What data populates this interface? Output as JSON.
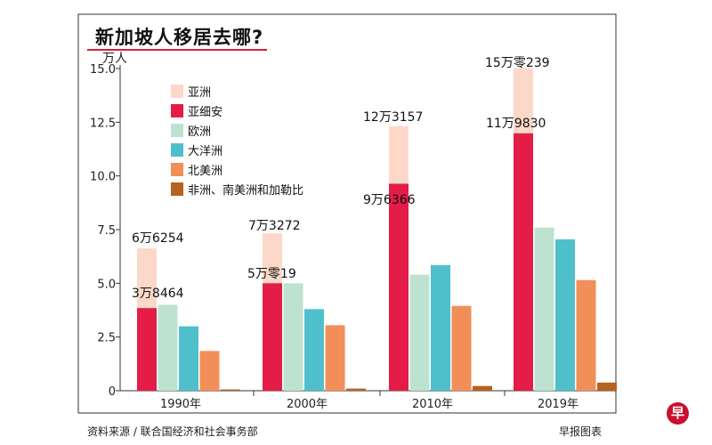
{
  "title": "新加坡人移居去哪?",
  "source": "资料来源 / 联合国经济和社会事务部",
  "credit": "早报图表",
  "logo_text": "早",
  "colors": {
    "asia_total": "#fbd8c8",
    "asean": "#e31d48",
    "europe": "#bde3d0",
    "oceania": "#4fc0cb",
    "north_america": "#f28f58",
    "africa_latam": "#b7621f",
    "frame": "#333333",
    "title_rule": "#d2233c"
  },
  "chart_data": {
    "type": "bar",
    "ylabel": "万人",
    "ylim": [
      0,
      15
    ],
    "yticks": [
      "0",
      "2.5",
      "5.0",
      "7.5",
      "10.0",
      "12.5",
      "15.0"
    ],
    "ytick_values": [
      0,
      2.5,
      5,
      7.5,
      10,
      12.5,
      15
    ],
    "grid": false,
    "legend_position": "top-left",
    "categories": [
      "1990年",
      "2000年",
      "2010年",
      "2019年"
    ],
    "series": [
      {
        "name": "亚洲",
        "key": "asia_total",
        "values": [
          6.6254,
          7.3272,
          12.3157,
          15.0239
        ]
      },
      {
        "name": "亚细安",
        "key": "asean",
        "values": [
          3.8464,
          5.0019,
          9.6366,
          11.983
        ]
      },
      {
        "name": "欧洲",
        "key": "europe",
        "values": [
          4.0,
          5.0,
          5.4,
          7.6
        ]
      },
      {
        "name": "大洋洲",
        "key": "oceania",
        "values": [
          3.0,
          3.8,
          5.85,
          7.05
        ]
      },
      {
        "name": "北美洲",
        "key": "north_america",
        "values": [
          1.85,
          3.05,
          3.95,
          5.15
        ]
      },
      {
        "name": "非洲、南美洲和加勒比",
        "key": "africa_latam",
        "values": [
          0.06,
          0.1,
          0.22,
          0.38
        ]
      }
    ],
    "data_labels": {
      "asia_total": [
        "6万6254",
        "7万3272",
        "12万3157",
        "15万零239"
      ],
      "asean": [
        "3万8464",
        "5万零19",
        "9万6366",
        "11万9830"
      ]
    }
  }
}
